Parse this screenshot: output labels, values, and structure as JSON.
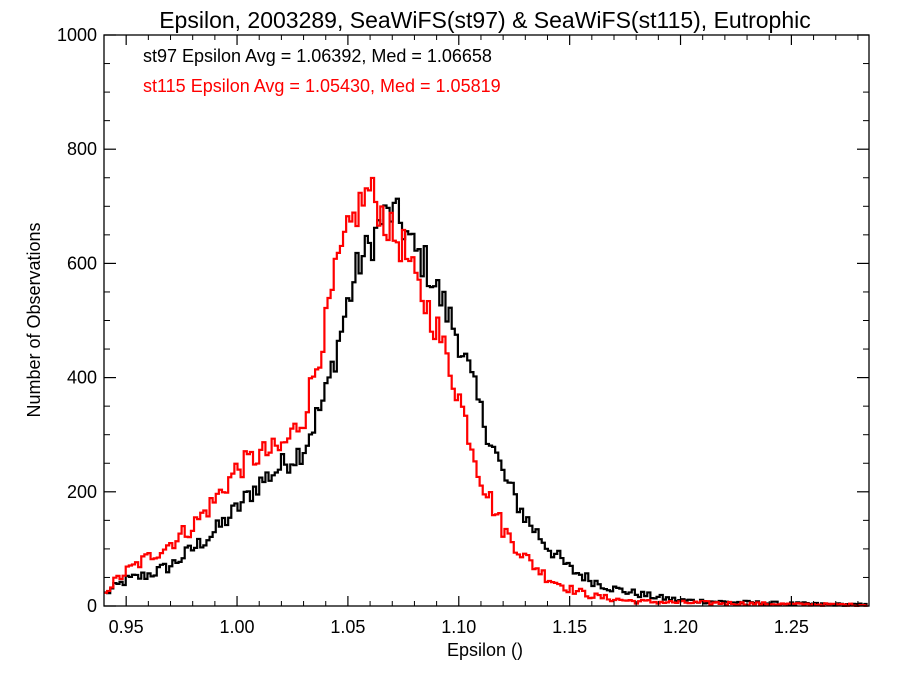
{
  "chart_data": {
    "type": "line",
    "step": true,
    "title": "Epsilon, 2003289, SeaWiFS(st97) & SeaWiFS(st115), Eutrophic",
    "xlabel": "Epsilon ()",
    "ylabel": "Number of Observations",
    "xlim": [
      0.94,
      1.285
    ],
    "ylim": [
      0,
      1000
    ],
    "xticks": [
      0.95,
      1.0,
      1.05,
      1.1,
      1.15,
      1.2,
      1.25
    ],
    "xtick_labels": [
      "0.95",
      "1.00",
      "1.05",
      "1.10",
      "1.15",
      "1.20",
      "1.25"
    ],
    "yticks": [
      0,
      200,
      400,
      600,
      800,
      1000
    ],
    "ytick_labels": [
      "0",
      "200",
      "400",
      "600",
      "800",
      "1000"
    ],
    "grid": false,
    "annotations": [
      {
        "text": "st97 Epsilon Avg = 1.06392, Med = 1.06658",
        "color": "#000000"
      },
      {
        "text": "st115 Epsilon Avg = 1.05430, Med = 1.05819",
        "color": "#ff0000"
      }
    ],
    "series": [
      {
        "color": "#000000",
        "points": [
          [
            0.94,
            20
          ],
          [
            0.95,
            45
          ],
          [
            0.96,
            55
          ],
          [
            0.97,
            70
          ],
          [
            0.98,
            100
          ],
          [
            0.99,
            130
          ],
          [
            1.0,
            170
          ],
          [
            1.01,
            215
          ],
          [
            1.02,
            245
          ],
          [
            1.03,
            275
          ],
          [
            1.04,
            370
          ],
          [
            1.05,
            530
          ],
          [
            1.055,
            600
          ],
          [
            1.06,
            630
          ],
          [
            1.065,
            675
          ],
          [
            1.07,
            690
          ],
          [
            1.075,
            665
          ],
          [
            1.08,
            620
          ],
          [
            1.085,
            600
          ],
          [
            1.09,
            555
          ],
          [
            1.1,
            470
          ],
          [
            1.11,
            340
          ],
          [
            1.12,
            230
          ],
          [
            1.13,
            155
          ],
          [
            1.14,
            105
          ],
          [
            1.15,
            65
          ],
          [
            1.16,
            45
          ],
          [
            1.17,
            30
          ],
          [
            1.18,
            22
          ],
          [
            1.19,
            15
          ],
          [
            1.2,
            10
          ],
          [
            1.22,
            7
          ],
          [
            1.25,
            4
          ],
          [
            1.285,
            2
          ]
        ]
      },
      {
        "color": "#ff0000",
        "points": [
          [
            0.94,
            25
          ],
          [
            0.95,
            60
          ],
          [
            0.96,
            85
          ],
          [
            0.97,
            110
          ],
          [
            0.98,
            140
          ],
          [
            0.99,
            185
          ],
          [
            1.0,
            240
          ],
          [
            1.01,
            265
          ],
          [
            1.02,
            275
          ],
          [
            1.03,
            330
          ],
          [
            1.04,
            490
          ],
          [
            1.045,
            590
          ],
          [
            1.05,
            650
          ],
          [
            1.055,
            700
          ],
          [
            1.06,
            730
          ],
          [
            1.065,
            690
          ],
          [
            1.07,
            650
          ],
          [
            1.075,
            630
          ],
          [
            1.08,
            570
          ],
          [
            1.085,
            530
          ],
          [
            1.09,
            490
          ],
          [
            1.1,
            370
          ],
          [
            1.11,
            225
          ],
          [
            1.12,
            135
          ],
          [
            1.13,
            85
          ],
          [
            1.14,
            50
          ],
          [
            1.15,
            30
          ],
          [
            1.16,
            18
          ],
          [
            1.17,
            12
          ],
          [
            1.18,
            8
          ],
          [
            1.2,
            6
          ],
          [
            1.22,
            5
          ],
          [
            1.25,
            3
          ],
          [
            1.285,
            2
          ]
        ]
      }
    ]
  }
}
